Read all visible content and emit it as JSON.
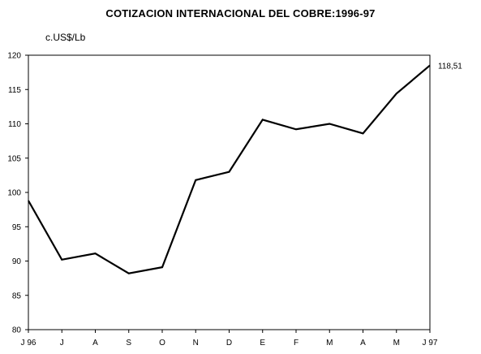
{
  "chart_data": {
    "type": "line",
    "title": "COTIZACION INTERNACIONAL DEL COBRE:1996-97",
    "ylabel": "c.US$/Lb",
    "xlabel": "",
    "categories": [
      "J 96",
      "J",
      "A",
      "S",
      "O",
      "N",
      "D",
      "E",
      "F",
      "M",
      "A",
      "M",
      "J 97"
    ],
    "series": [
      {
        "values": [
          98.8,
          90.2,
          91.1,
          88.2,
          89.1,
          101.8,
          103.0,
          110.6,
          109.2,
          110.0,
          108.6,
          114.4,
          118.51
        ]
      }
    ],
    "ylim": [
      80,
      120
    ],
    "yticks": [
      80,
      85,
      90,
      95,
      100,
      105,
      110,
      115,
      120
    ],
    "yticklabels": [
      "80",
      "85",
      "90",
      "95",
      "100",
      "105",
      "110",
      "115",
      "120"
    ],
    "end_label": "118,51",
    "grid": false,
    "line_color": "#000000"
  }
}
